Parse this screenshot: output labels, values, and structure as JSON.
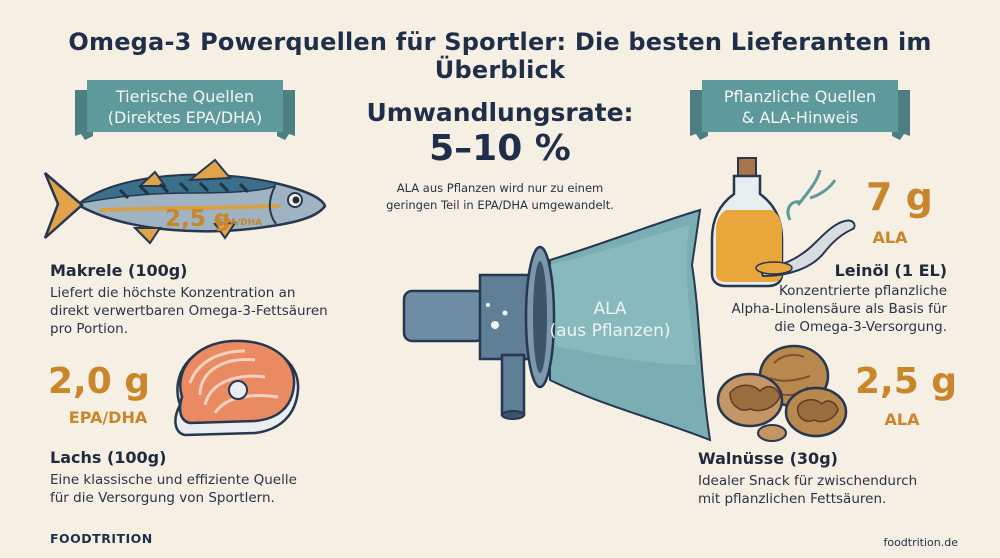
{
  "title": "Omega-3 Powerquellen für Sportler: Die besten Lieferanten im Überblick",
  "left_banner": {
    "line1": "Tierische Quellen",
    "line2": "(Direktes EPA/DHA)"
  },
  "right_banner": {
    "line1": "Pflanzliche Quellen",
    "line2": "& ALA-Hinweis"
  },
  "center": {
    "heading": "Umwandlungsrate:",
    "rate": "5–10 %",
    "desc_line1": "ALA aus Pflanzen wird nur zu einem",
    "desc_line2": "geringen Teil in EPA/DHA umgewandelt.",
    "funnel_line1": "ALA",
    "funnel_line2": "(aus Pflanzen)"
  },
  "items": {
    "makrele": {
      "amount": "2,5 g",
      "unit": "EPA/DHA",
      "name": "Makrele (100g)",
      "desc": [
        "Liefert die höchste Konzentration an",
        "direkt verwertbaren Omega-3-Fettsäuren",
        "pro Portion."
      ]
    },
    "lachs": {
      "amount": "2,0 g",
      "unit": "EPA/DHA",
      "name": "Lachs (100g)",
      "desc": [
        "Eine klassische und effiziente Quelle",
        "für die Versorgung von Sportlern."
      ]
    },
    "leinoel": {
      "amount": "7 g",
      "unit": "ALA",
      "name": "Leinöl (1 EL)",
      "desc": [
        "Konzentrierte pflanzliche",
        "Alpha-Linolensäure als Basis für",
        "die Omega-3-Versorgung."
      ]
    },
    "walnuesse": {
      "amount": "2,5 g",
      "unit": "ALA",
      "name": "Walnüsse (30g)",
      "desc": [
        "Idealer Snack für zwischendurch",
        "mit pflanzlichen Fettsäuren."
      ]
    }
  },
  "footer": {
    "brand": "FOODTRITION",
    "url": "foodtrition.de"
  },
  "colors": {
    "accent": "#c9862a",
    "banner": "#5e9a9c",
    "navy": "#1f2f4a",
    "background": "#f6efe3"
  },
  "icons": [
    "mackerel-icon",
    "salmon-steak-icon",
    "oil-bottle-icon",
    "walnut-icon",
    "funnel-icon"
  ]
}
